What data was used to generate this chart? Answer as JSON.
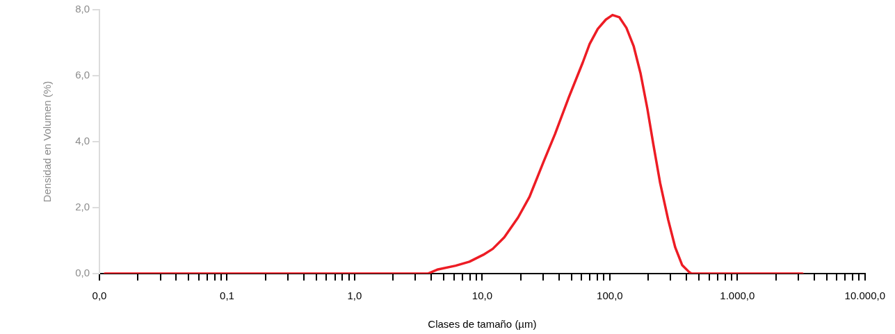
{
  "chart_data": {
    "type": "line",
    "xlabel": "Clases de tamaño (µm)",
    "ylabel": "Densidad en Volumen (%)",
    "log": "x",
    "xlim": [
      0.01,
      10000
    ],
    "ylim": [
      0,
      8
    ],
    "xticks": [
      {
        "value": 0.01,
        "label": "0,0"
      },
      {
        "value": 0.02,
        "label": null
      },
      {
        "value": 0.03,
        "label": null
      },
      {
        "value": 0.04,
        "label": null
      },
      {
        "value": 0.05,
        "label": null
      },
      {
        "value": 0.06,
        "label": null
      },
      {
        "value": 0.07,
        "label": null
      },
      {
        "value": 0.08,
        "label": null
      },
      {
        "value": 0.09,
        "label": null
      },
      {
        "value": 0.1,
        "label": "0,1"
      },
      {
        "value": 0.2,
        "label": null
      },
      {
        "value": 0.3,
        "label": null
      },
      {
        "value": 0.4,
        "label": null
      },
      {
        "value": 0.5,
        "label": null
      },
      {
        "value": 0.6,
        "label": null
      },
      {
        "value": 0.7,
        "label": null
      },
      {
        "value": 0.8,
        "label": null
      },
      {
        "value": 0.9,
        "label": null
      },
      {
        "value": 1,
        "label": "1,0"
      },
      {
        "value": 2,
        "label": null
      },
      {
        "value": 3,
        "label": null
      },
      {
        "value": 4,
        "label": null
      },
      {
        "value": 5,
        "label": null
      },
      {
        "value": 6,
        "label": null
      },
      {
        "value": 7,
        "label": null
      },
      {
        "value": 8,
        "label": null
      },
      {
        "value": 9,
        "label": null
      },
      {
        "value": 10,
        "label": "10,0"
      },
      {
        "value": 20,
        "label": null
      },
      {
        "value": 30,
        "label": null
      },
      {
        "value": 40,
        "label": null
      },
      {
        "value": 50,
        "label": null
      },
      {
        "value": 60,
        "label": null
      },
      {
        "value": 70,
        "label": null
      },
      {
        "value": 80,
        "label": null
      },
      {
        "value": 90,
        "label": null
      },
      {
        "value": 100,
        "label": "100,0"
      },
      {
        "value": 200,
        "label": null
      },
      {
        "value": 300,
        "label": null
      },
      {
        "value": 400,
        "label": null
      },
      {
        "value": 500,
        "label": null
      },
      {
        "value": 600,
        "label": null
      },
      {
        "value": 700,
        "label": null
      },
      {
        "value": 800,
        "label": null
      },
      {
        "value": 900,
        "label": null
      },
      {
        "value": 1000,
        "label": "1.000,0"
      },
      {
        "value": 2000,
        "label": null
      },
      {
        "value": 3000,
        "label": null
      },
      {
        "value": 4000,
        "label": null
      },
      {
        "value": 5000,
        "label": null
      },
      {
        "value": 6000,
        "label": null
      },
      {
        "value": 7000,
        "label": null
      },
      {
        "value": 8000,
        "label": null
      },
      {
        "value": 9000,
        "label": null
      },
      {
        "value": 10000,
        "label": "10.000,0"
      }
    ],
    "yticks": [
      {
        "value": 0,
        "label": "0,0"
      },
      {
        "value": 2,
        "label": "2,0"
      },
      {
        "value": 4,
        "label": "4,0"
      },
      {
        "value": 6,
        "label": "6,0"
      },
      {
        "value": 8,
        "label": "8,0"
      }
    ],
    "grid": false,
    "legend": false,
    "marker": "none",
    "line_style": "solid",
    "series": [
      {
        "color": "#ed1c24",
        "x": [
          0.011,
          3.75,
          4.44,
          6.19,
          7.94,
          10.2,
          12.1,
          14.9,
          19.1,
          23.5,
          30.2,
          37.2,
          47.8,
          61.4,
          69.5,
          80.5,
          93.1,
          105,
          119,
          135,
          154,
          174,
          197,
          219,
          248,
          287,
          326,
          369,
          418,
          437,
          3240
        ],
        "values": [
          0,
          0,
          0.12,
          0.24,
          0.36,
          0.57,
          0.75,
          1.1,
          1.7,
          2.33,
          3.38,
          4.23,
          5.35,
          6.4,
          6.96,
          7.42,
          7.7,
          7.84,
          7.77,
          7.45,
          6.89,
          6.08,
          5.0,
          3.94,
          2.75,
          1.63,
          0.79,
          0.26,
          0.05,
          0,
          0
        ]
      }
    ]
  }
}
